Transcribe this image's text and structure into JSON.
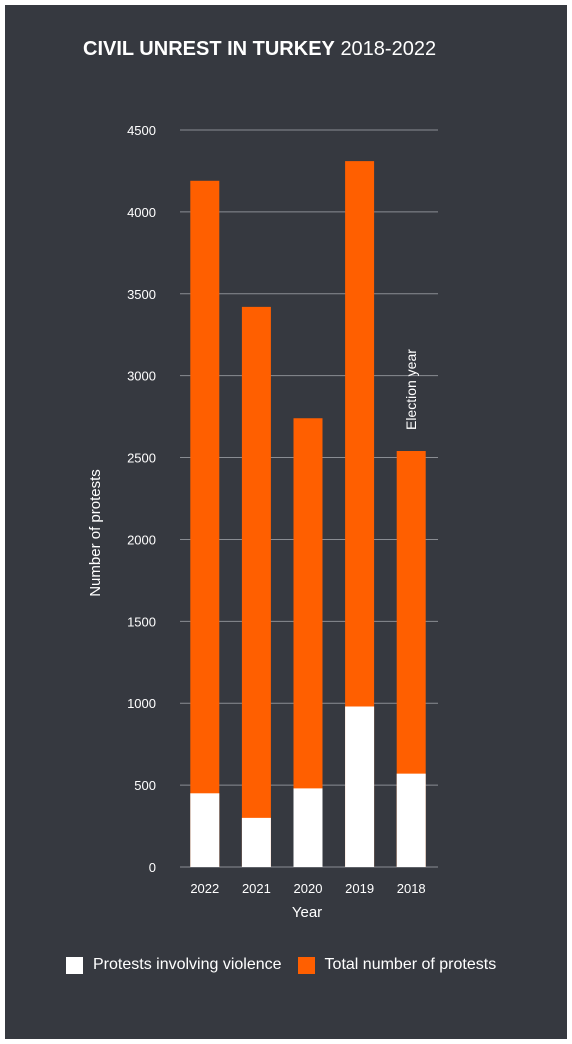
{
  "header": {
    "title_bold": "CIVIL UNREST IN TURKEY",
    "title_light": "2018-2022"
  },
  "chart_data": {
    "type": "bar",
    "stacked": "overlay",
    "categories": [
      "2022",
      "2021",
      "2020",
      "2019",
      "2018"
    ],
    "series": [
      {
        "name": "Total number of protests",
        "color": "#ff5f00",
        "values": [
          4190,
          3420,
          2740,
          4310,
          2540
        ]
      },
      {
        "name": "Protests involving violence",
        "color": "#ffffff",
        "values": [
          450,
          300,
          480,
          980,
          570
        ]
      }
    ],
    "ylim": [
      0,
      4500
    ],
    "yticks": [
      "0",
      "500",
      "1000",
      "1500",
      "2000",
      "2500",
      "3000",
      "3500",
      "4000",
      "4500"
    ],
    "ylabel": "Number of protests",
    "xlabel": "Year",
    "grid": true,
    "annotation": {
      "category": "2018",
      "text": "Election year"
    },
    "legend": {
      "position": "bottom"
    }
  },
  "legend": {
    "violence_label": "Protests involving violence",
    "total_label": "Total number of protests"
  },
  "colors": {
    "background": "#363940",
    "accent": "#ff5f00",
    "grid": "#8a8d93"
  }
}
